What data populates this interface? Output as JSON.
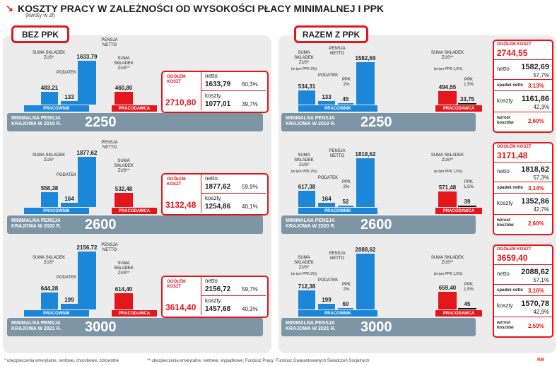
{
  "title": "KOSZTY PRACY W ZALEŻNOŚCI OD WYSOKOŚCI PŁACY MINIMALNEJ I PPK",
  "subtitle": "(kwoty w zł)",
  "icons": {
    "title": "arrow-down-right-icon"
  },
  "colors": {
    "blue": "#1c86d8",
    "red": "#e3161b",
    "strip": "#7e95a6",
    "panel": "#ececec"
  },
  "labels": {
    "sections": [
      "BEZ PPK",
      "RAZEM Z PPK"
    ],
    "zus_employee": "SUMA SKŁADEK ZUS*",
    "zus_employee_ppk": "(w tym PPK 2%)",
    "tax": "PODATEK",
    "net": "PENSJA NETTO",
    "zus_employer": "SUMA SKŁADEK ZUS**",
    "zus_employer_ppk": "(w tym PPK 1,5%)",
    "ppk_employee": "PPK 2%",
    "ppk_employer": "PPK 1,5%",
    "employee": "PRACOWNIK",
    "employer": "PRACODAWCA",
    "strip_prefix": "MINIMALNA PENSJA",
    "total_cost": "OGÓŁEM KOSZT",
    "net_short": "netto",
    "costs_short": "koszty",
    "net_drop": "spadek netto",
    "cost_rise": "wzrost kosztów"
  },
  "footnotes": {
    "one": "* ubezpieczenia emerytalne, rentowe, chorobowe, zdrowotne",
    "two": "** ubezpieczenia emerytalne, rentowe, wypadkowe; Fundusz Pracy; Fundusz Gwarantowanych Świadczeń Socjalnych"
  },
  "logo": "RM",
  "chart_data": [
    {
      "type": "bar",
      "title": "BEZ PPK",
      "rows": [
        {
          "year_label": "KRAJOWA W 2019 R.",
          "min_wage": "2250",
          "employee": {
            "zus": "483,21",
            "tax": "133",
            "net": "1633,79"
          },
          "employer": {
            "zus": "460,80"
          },
          "values": {
            "zus": 483.21,
            "tax": 133,
            "net": 1633.79,
            "employer_zus": 460.8
          },
          "total": "2710,80",
          "net_amount": "1633,79",
          "net_pct": "60,3%",
          "cost_amount": "1077,01",
          "cost_pct": "39,7%"
        },
        {
          "year_label": "KRAJOWA W 2020 R.",
          "min_wage": "2600",
          "employee": {
            "zus": "558,38",
            "tax": "164",
            "net": "1877,62"
          },
          "employer": {
            "zus": "532,48"
          },
          "values": {
            "zus": 558.38,
            "tax": 164,
            "net": 1877.62,
            "employer_zus": 532.48
          },
          "total": "3132,48",
          "net_amount": "1877,62",
          "net_pct": "59,9%",
          "cost_amount": "1254,86",
          "cost_pct": "40,1%"
        },
        {
          "year_label": "KRAJOWA W 2021 R.",
          "min_wage": "3000",
          "employee": {
            "zus": "644,28",
            "tax": "199",
            "net": "2156,72"
          },
          "employer": {
            "zus": "614,40"
          },
          "values": {
            "zus": 644.28,
            "tax": 199,
            "net": 2156.72,
            "employer_zus": 614.4
          },
          "total": "3614,40",
          "net_amount": "2156,72",
          "net_pct": "59,7%",
          "cost_amount": "1457,68",
          "cost_pct": "40,3%"
        }
      ]
    },
    {
      "type": "bar",
      "title": "RAZEM Z PPK",
      "rows": [
        {
          "year_label": "KRAJOWA W 2019 R.",
          "min_wage": "2250",
          "employee": {
            "zus": "534,31",
            "tax": "133",
            "ppk": "45",
            "net": "1582,69"
          },
          "employer": {
            "zus": "494,55",
            "ppk": "33,75"
          },
          "values": {
            "zus": 534.31,
            "tax": 133,
            "ppk": 45,
            "net": 1582.69,
            "employer_zus": 494.55,
            "employer_ppk": 33.75
          },
          "total": "2744,55",
          "net_amount": "1582,69",
          "net_pct": "57,7%",
          "net_drop": "3,13%",
          "cost_amount": "1161,86",
          "cost_pct": "42,3%",
          "cost_rise": "2,60%"
        },
        {
          "year_label": "KRAJOWA W 2020 R.",
          "min_wage": "2600",
          "employee": {
            "zus": "617,38",
            "tax": "164",
            "ppk": "52",
            "net": "1818,62"
          },
          "employer": {
            "zus": "571,48",
            "ppk": "39"
          },
          "values": {
            "zus": 617.38,
            "tax": 164,
            "ppk": 52,
            "net": 1818.62,
            "employer_zus": 571.48,
            "employer_ppk": 39
          },
          "total": "3171,48",
          "net_amount": "1818,62",
          "net_pct": "57,3%",
          "net_drop": "3,14%",
          "cost_amount": "1352,86",
          "cost_pct": "42,7%",
          "cost_rise": "2,60%"
        },
        {
          "year_label": "KRAJOWA W 2021 R.",
          "min_wage": "3000",
          "employee": {
            "zus": "712,38",
            "tax": "199",
            "ppk": "60",
            "net": "2088,62"
          },
          "employer": {
            "zus": "659,40",
            "ppk": "45"
          },
          "values": {
            "zus": 712.38,
            "tax": 199,
            "ppk": 60,
            "net": 2088.62,
            "employer_zus": 659.4,
            "employer_ppk": 45
          },
          "total": "3659,40",
          "net_amount": "2088,62",
          "net_pct": "57,1%",
          "net_drop": "3,16%",
          "cost_amount": "1570,78",
          "cost_pct": "42,9%",
          "cost_rise": "2,59%"
        }
      ]
    }
  ]
}
